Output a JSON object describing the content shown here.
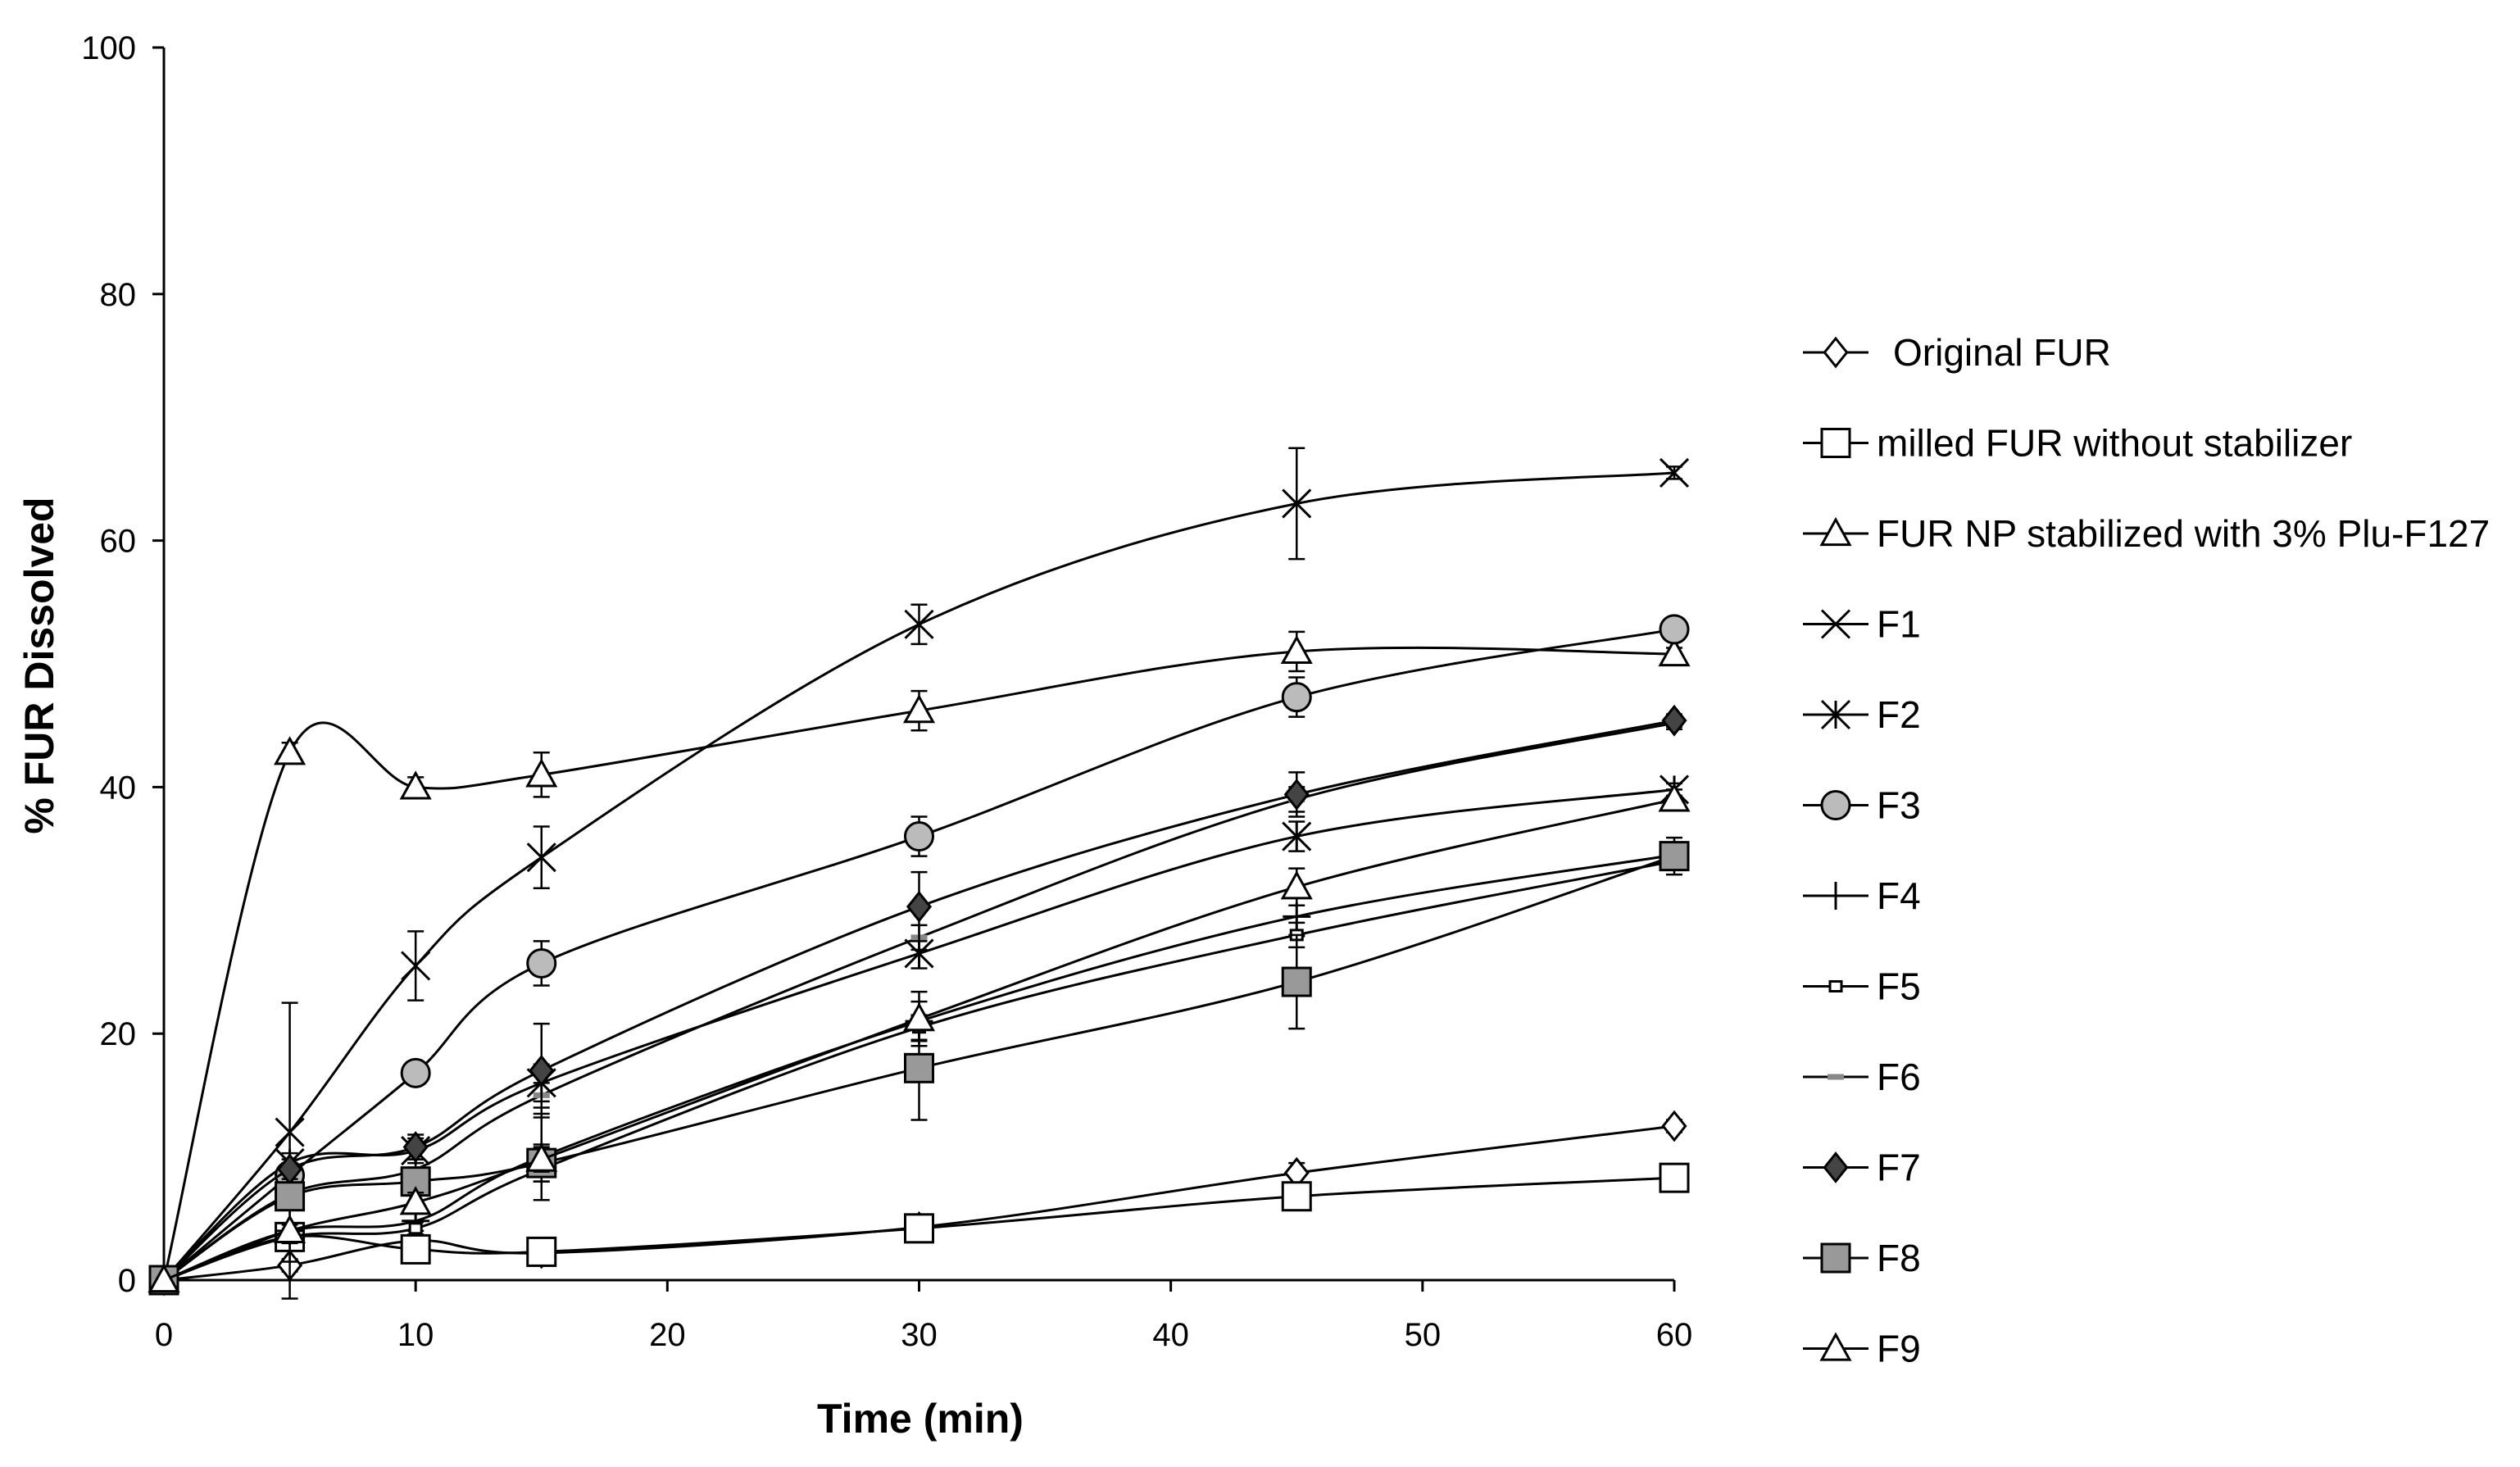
{
  "chart_data": {
    "type": "line",
    "title": "",
    "xlabel": "Time (min)",
    "ylabel": "% FUR Dissolved",
    "xlim": [
      0,
      60
    ],
    "ylim": [
      0,
      100
    ],
    "xticks": [
      0,
      10,
      20,
      30,
      40,
      50,
      60
    ],
    "yticks": [
      0,
      20,
      40,
      60,
      80,
      100
    ],
    "x": [
      0,
      5,
      10,
      15,
      30,
      45,
      60
    ],
    "grid": false,
    "legend_position": "right",
    "series": [
      {
        "name": "Original FUR",
        "marker": "diamond-open",
        "values": [
          0,
          1.2,
          3.2,
          2.2,
          4.3,
          8.7,
          12.5
        ],
        "errors": [
          0,
          0.5,
          0.5,
          0.5,
          0.6,
          0.8,
          0.5
        ]
      },
      {
        "name": "milled FUR without stabilizer",
        "marker": "square-open",
        "values": [
          0,
          3.5,
          2.5,
          2.3,
          4.2,
          6.8,
          8.3
        ],
        "errors": [
          0,
          0.5,
          0.5,
          0.5,
          0.6,
          0.8,
          0.5
        ]
      },
      {
        "name": "FUR NP stabilized with 3% Plu-F127",
        "marker": "triangle-open",
        "values": [
          0,
          42.8,
          40,
          41,
          46.2,
          51,
          50.8
        ],
        "errors": [
          0,
          0.8,
          0.8,
          1.8,
          1.6,
          1.6,
          0.5
        ]
      },
      {
        "name": "F1",
        "marker": "x",
        "values": [
          0,
          12,
          25.5,
          34.3,
          53.2,
          63,
          65.5
        ],
        "errors": [
          0,
          10.5,
          2.8,
          2.5,
          1.6,
          4.5,
          0.5
        ]
      },
      {
        "name": "F2",
        "marker": "asterisk",
        "values": [
          0,
          9.5,
          10.5,
          16,
          26.5,
          36,
          39.8
        ],
        "errors": [
          0,
          0.8,
          1,
          1.5,
          1.2,
          1.2,
          0.5
        ]
      },
      {
        "name": "F3",
        "marker": "circle-gray",
        "values": [
          0,
          8.5,
          16.8,
          25.7,
          36,
          47.3,
          52.8
        ],
        "errors": [
          0,
          0.8,
          0.8,
          1.8,
          1.6,
          1.6,
          0.5
        ]
      },
      {
        "name": "F4",
        "marker": "plus",
        "values": [
          0,
          4,
          4.8,
          10,
          21,
          29.5,
          34.5
        ],
        "errors": [
          0,
          5.5,
          0.8,
          3.5,
          1.6,
          1.6,
          0.5
        ]
      },
      {
        "name": "F5",
        "marker": "square-small",
        "values": [
          0,
          3.5,
          4.2,
          9,
          20.5,
          28,
          34
        ],
        "errors": [
          0,
          0.5,
          0.5,
          1,
          1,
          1,
          0.5
        ]
      },
      {
        "name": "F6",
        "marker": "dash-gray",
        "values": [
          0,
          7,
          9,
          15,
          27.8,
          39,
          45.2
        ],
        "errors": [
          0,
          0.5,
          0.8,
          1,
          1,
          1,
          0.5
        ]
      },
      {
        "name": "F7",
        "marker": "diamond-dark",
        "values": [
          0,
          9,
          10.8,
          17,
          30.3,
          39.4,
          45.4
        ],
        "errors": [
          0,
          0.8,
          1,
          3.8,
          2.8,
          1.8,
          0.5
        ]
      },
      {
        "name": "F8",
        "marker": "square-gray",
        "values": [
          0,
          6.8,
          8,
          9.5,
          17.2,
          24.2,
          34.4
        ],
        "errors": [
          0,
          0.8,
          0.8,
          1.5,
          4.2,
          3.8,
          1.5
        ]
      },
      {
        "name": "F9",
        "marker": "triangle-open",
        "values": [
          0,
          4,
          6.3,
          9.8,
          21.2,
          31.9,
          39
        ],
        "errors": [
          0,
          0.5,
          0.8,
          1,
          2.2,
          1.5,
          0.8
        ]
      }
    ]
  }
}
